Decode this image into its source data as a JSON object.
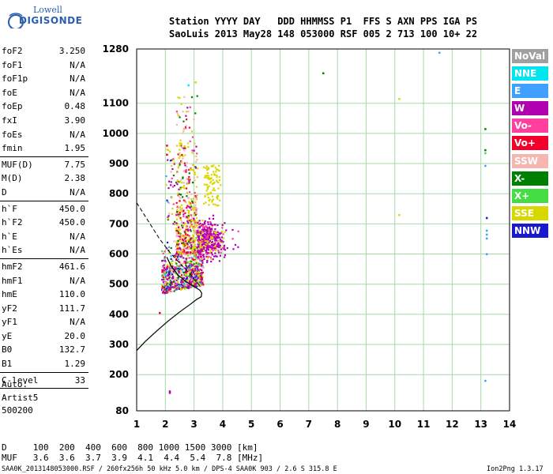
{
  "logo": {
    "line1": "Lowell",
    "line2": "DIGISONDE"
  },
  "header": {
    "row1": "Station YYYY DAY   DDD HHMMSS P1  FFS S AXN PPS IGA PS",
    "row2": "SaoLuis 2013 May28 148 053000 RSF 005 2 713 100 10+ 22"
  },
  "params": [
    {
      "label": "foF2",
      "value": "3.250"
    },
    {
      "label": "foF1",
      "value": "N/A"
    },
    {
      "label": "foF1p",
      "value": "N/A"
    },
    {
      "label": "foE",
      "value": "N/A"
    },
    {
      "label": "foEp",
      "value": "0.48"
    },
    {
      "label": "fxI",
      "value": "3.90"
    },
    {
      "label": "foEs",
      "value": "N/A"
    },
    {
      "label": "fmin",
      "value": "1.95"
    },
    {
      "sep": true
    },
    {
      "label": "MUF(D)",
      "value": "7.75"
    },
    {
      "label": "M(D)",
      "value": "2.38"
    },
    {
      "label": "D",
      "value": "N/A"
    },
    {
      "sep": true
    },
    {
      "label": "h`F",
      "value": "450.0"
    },
    {
      "label": "h`F2",
      "value": "450.0"
    },
    {
      "label": "h`E",
      "value": "N/A"
    },
    {
      "label": "h`Es",
      "value": "N/A"
    },
    {
      "sep": true
    },
    {
      "label": "hmF2",
      "value": "461.6"
    },
    {
      "label": "hmF1",
      "value": "N/A"
    },
    {
      "label": "hmE",
      "value": "110.0"
    },
    {
      "label": "yF2",
      "value": "111.7"
    },
    {
      "label": "yF1",
      "value": "N/A"
    },
    {
      "label": "yE",
      "value": "20.0"
    },
    {
      "label": "B0",
      "value": "132.7"
    },
    {
      "label": "B1",
      "value": "1.29"
    },
    {
      "sep": true
    },
    {
      "label": "C-level",
      "value": "33"
    },
    {
      "sep": true
    }
  ],
  "auto": [
    "Auto:",
    "Artist5",
    "500200"
  ],
  "legend": [
    {
      "label": "NoVal",
      "color": "#a0a0a0"
    },
    {
      "label": "NNE",
      "color": "#00e5ee"
    },
    {
      "label": "E",
      "color": "#40a0ff"
    },
    {
      "label": "W",
      "color": "#b000b0"
    },
    {
      "label": "Vo-",
      "color": "#ff3fa0"
    },
    {
      "label": "Vo+",
      "color": "#f0002a"
    },
    {
      "label": "SSW",
      "color": "#f5b5b0"
    },
    {
      "label": "X-",
      "color": "#008000"
    },
    {
      "label": "X+",
      "color": "#44dd44"
    },
    {
      "label": "SSE",
      "color": "#d8d800"
    },
    {
      "label": "NNW",
      "color": "#1a1acc"
    }
  ],
  "bottom": {
    "row_d": "D     100  200  400  600  800 1000 1500 3000 [km]",
    "row_muf": "MUF   3.6  3.6  3.7  3.9  4.1  4.4  5.4  7.8 [MHz]",
    "footer_left": "SAA0K_2013148053000.RSF / 260fx256h 50 kHz 5.0 km / DPS-4 SAA0K 903 / 2.6 S 315.8 E",
    "footer_right": "Ion2Png 1.3.17"
  },
  "chart_data": {
    "type": "scatter",
    "xlim": [
      1,
      14
    ],
    "ylim": [
      80,
      1280
    ],
    "xticks": [
      1,
      2,
      3,
      4,
      5,
      6,
      7,
      8,
      9,
      10,
      11,
      12,
      13,
      14
    ],
    "yticks": [
      80,
      200,
      300,
      400,
      500,
      600,
      700,
      800,
      900,
      1000,
      1100,
      1280
    ],
    "grid": true,
    "profile_curve": [
      [
        1.0,
        280
      ],
      [
        1.3,
        310
      ],
      [
        1.7,
        345
      ],
      [
        2.1,
        378
      ],
      [
        2.5,
        408
      ],
      [
        2.85,
        432
      ],
      [
        3.1,
        450
      ],
      [
        3.25,
        458
      ],
      [
        3.27,
        470
      ],
      [
        3.2,
        480
      ],
      [
        2.95,
        495
      ],
      [
        2.7,
        510
      ],
      [
        2.45,
        530
      ],
      [
        2.2,
        560
      ],
      [
        2.05,
        590
      ]
    ],
    "virtual_height_trace": [
      [
        1.0,
        770
      ],
      [
        1.4,
        710
      ],
      [
        1.8,
        650
      ],
      [
        2.2,
        600
      ],
      [
        2.6,
        560
      ],
      [
        2.9,
        530
      ],
      [
        3.05,
        510
      ],
      [
        3.2,
        495
      ]
    ],
    "outlier_points": [
      {
        "x": 7.5,
        "y": 1200,
        "c": "#008000"
      },
      {
        "x": 11.55,
        "y": 1268,
        "c": "#40a0ff"
      },
      {
        "x": 10.15,
        "y": 1115,
        "c": "#d8d800"
      },
      {
        "x": 10.15,
        "y": 730,
        "c": "#d8d800"
      },
      {
        "x": 13.15,
        "y": 1015,
        "c": "#008000"
      },
      {
        "x": 13.15,
        "y": 945,
        "c": "#008000"
      },
      {
        "x": 13.15,
        "y": 935,
        "c": "#44dd44"
      },
      {
        "x": 13.15,
        "y": 893,
        "c": "#40a0ff"
      },
      {
        "x": 13.2,
        "y": 720,
        "c": "#1a1acc"
      },
      {
        "x": 13.2,
        "y": 678,
        "c": "#40a0ff"
      },
      {
        "x": 13.2,
        "y": 665,
        "c": "#40a0ff"
      },
      {
        "x": 13.2,
        "y": 652,
        "c": "#40a0ff"
      },
      {
        "x": 13.2,
        "y": 600,
        "c": "#40a0ff"
      },
      {
        "x": 13.15,
        "y": 180,
        "c": "#40a0ff"
      },
      {
        "x": 2.15,
        "y": 145,
        "c": "#b000b0"
      },
      {
        "x": 2.15,
        "y": 140,
        "c": "#b000b0"
      },
      {
        "x": 1.8,
        "y": 405,
        "c": "#f0002a"
      },
      {
        "x": 2.8,
        "y": 1160,
        "c": "#00e5ee"
      },
      {
        "x": 3.05,
        "y": 1170,
        "c": "#d8d800"
      },
      {
        "x": 2.05,
        "y": 930,
        "c": "#f0002a"
      },
      {
        "x": 2.05,
        "y": 960,
        "c": "#f0002a"
      }
    ]
  }
}
